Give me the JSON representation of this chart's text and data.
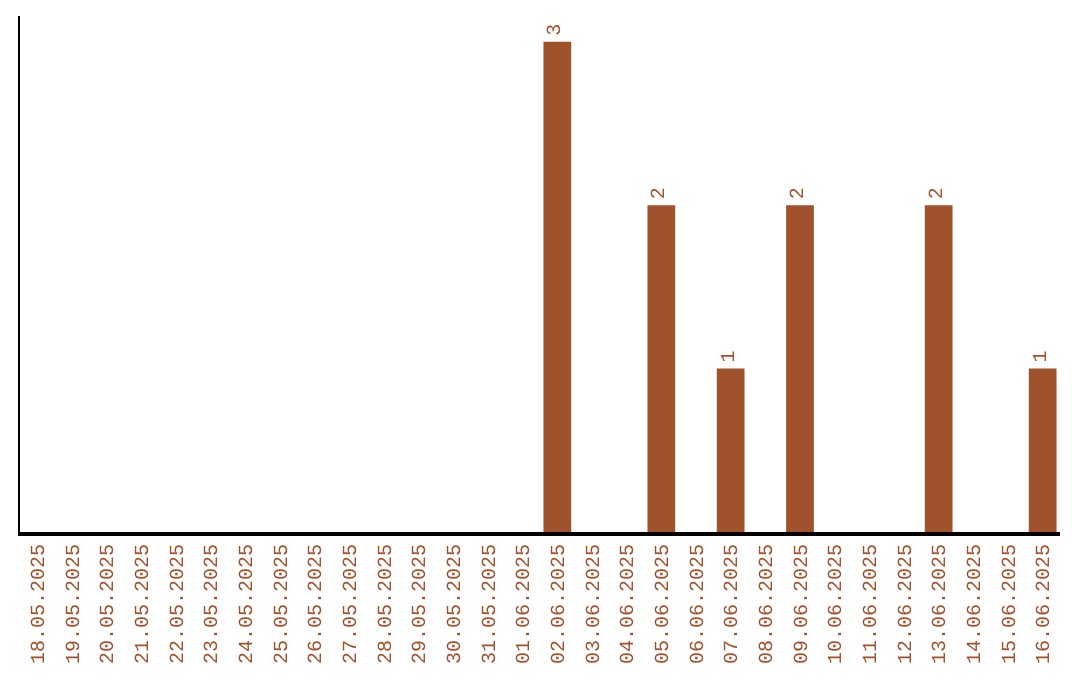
{
  "chart_data": {
    "type": "bar",
    "categories": [
      "18.05.2025",
      "19.05.2025",
      "20.05.2025",
      "21.05.2025",
      "22.05.2025",
      "23.05.2025",
      "24.05.2025",
      "25.05.2025",
      "26.05.2025",
      "27.05.2025",
      "28.05.2025",
      "29.05.2025",
      "30.05.2025",
      "31.05.2025",
      "01.06.2025",
      "02.06.2025",
      "03.06.2025",
      "04.06.2025",
      "05.06.2025",
      "06.06.2025",
      "07.06.2025",
      "08.06.2025",
      "09.06.2025",
      "10.06.2025",
      "11.06.2025",
      "12.06.2025",
      "13.06.2025",
      "14.06.2025",
      "15.06.2025",
      "16.06.2025"
    ],
    "series": [
      {
        "color": "#a0522d",
        "values": [
          null,
          null,
          null,
          null,
          null,
          null,
          null,
          null,
          null,
          null,
          null,
          null,
          null,
          null,
          null,
          3,
          null,
          null,
          2,
          null,
          1,
          null,
          2,
          null,
          null,
          null,
          2,
          null,
          null,
          1
        ]
      }
    ],
    "data_labels": true,
    "tick_labels": "x"
  }
}
